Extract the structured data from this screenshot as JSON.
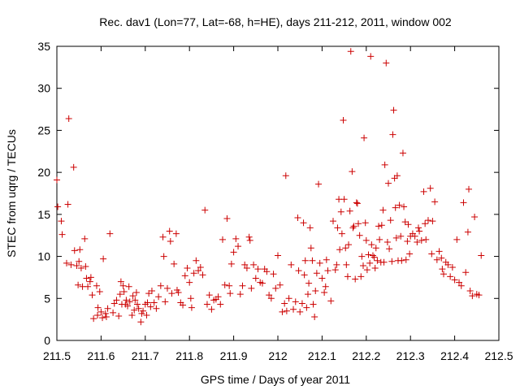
{
  "chart_data": {
    "type": "scatter",
    "title": "Rec. dav1 (Lon=77, Lat=-68, h=HE), days 211-212, 2011, window 002",
    "xlabel": "GPS time / Days of year 2011",
    "ylabel": "STEC from uqrg / TECUs",
    "xlim": [
      211.5,
      212.5
    ],
    "ylim": [
      0,
      35
    ],
    "xticks": [
      211.5,
      211.6,
      211.7,
      211.8,
      211.9,
      212.0,
      212.1,
      212.2,
      212.3,
      212.4,
      212.5
    ],
    "xtick_labels": [
      "211.5",
      "211.6",
      "211.7",
      "211.8",
      "211.9",
      "212",
      "212.1",
      "212.2",
      "212.3",
      "212.4",
      "212.5"
    ],
    "yticks": [
      0,
      5,
      10,
      15,
      20,
      25,
      30,
      35
    ],
    "ytick_labels": [
      "0",
      "5",
      "10",
      "15",
      "20",
      "25",
      "30",
      "35"
    ],
    "marker": "+",
    "series": [
      {
        "name": "STEC",
        "color": "#cc0000",
        "points": [
          [
            211.5,
            19.1
          ],
          [
            211.502,
            15.9
          ],
          [
            211.51,
            14.2
          ],
          [
            211.512,
            12.6
          ],
          [
            211.522,
            9.2
          ],
          [
            211.525,
            16.2
          ],
          [
            211.527,
            26.4
          ],
          [
            211.532,
            9.0
          ],
          [
            211.538,
            20.6
          ],
          [
            211.54,
            10.7
          ],
          [
            211.545,
            8.9
          ],
          [
            211.548,
            6.6
          ],
          [
            211.55,
            9.4
          ],
          [
            211.552,
            10.8
          ],
          [
            211.555,
            8.6
          ],
          [
            211.558,
            6.4
          ],
          [
            211.563,
            12.1
          ],
          [
            211.565,
            8.8
          ],
          [
            211.567,
            7.4
          ],
          [
            211.57,
            6.4
          ],
          [
            211.575,
            7.0
          ],
          [
            211.577,
            7.5
          ],
          [
            211.58,
            5.4
          ],
          [
            211.583,
            2.6
          ],
          [
            211.59,
            6.5
          ],
          [
            211.592,
            3.0
          ],
          [
            211.593,
            3.9
          ],
          [
            211.597,
            5.8
          ],
          [
            211.6,
            3.4
          ],
          [
            211.603,
            2.7
          ],
          [
            211.605,
            9.7
          ],
          [
            211.61,
            3.2
          ],
          [
            211.612,
            2.8
          ],
          [
            211.615,
            3.8
          ],
          [
            211.62,
            12.7
          ],
          [
            211.627,
            3.3
          ],
          [
            211.63,
            4.4
          ],
          [
            211.635,
            4.8
          ],
          [
            211.64,
            2.9
          ],
          [
            211.643,
            5.5
          ],
          [
            211.645,
            7.0
          ],
          [
            211.647,
            4.3
          ],
          [
            211.65,
            6.5
          ],
          [
            211.652,
            5.8
          ],
          [
            211.655,
            4.3
          ],
          [
            211.657,
            4.8
          ],
          [
            211.66,
            4.1
          ],
          [
            211.663,
            6.4
          ],
          [
            211.665,
            4.6
          ],
          [
            211.67,
            3.0
          ],
          [
            211.672,
            5.3
          ],
          [
            211.675,
            3.6
          ],
          [
            211.677,
            4.8
          ],
          [
            211.68,
            5.7
          ],
          [
            211.682,
            4.3
          ],
          [
            211.685,
            3.8
          ],
          [
            211.69,
            2.2
          ],
          [
            211.692,
            3.2
          ],
          [
            211.695,
            3.5
          ],
          [
            211.7,
            4.3
          ],
          [
            211.703,
            3.0
          ],
          [
            211.705,
            4.5
          ],
          [
            211.708,
            5.6
          ],
          [
            211.712,
            4.0
          ],
          [
            211.715,
            5.9
          ],
          [
            211.72,
            4.5
          ],
          [
            211.725,
            3.8
          ],
          [
            211.73,
            5.2
          ],
          [
            211.735,
            6.5
          ],
          [
            211.74,
            12.3
          ],
          [
            211.742,
            10.0
          ],
          [
            211.745,
            4.6
          ],
          [
            211.75,
            6.2
          ],
          [
            211.755,
            13.0
          ],
          [
            211.757,
            11.8
          ],
          [
            211.76,
            5.6
          ],
          [
            211.765,
            9.1
          ],
          [
            211.77,
            12.7
          ],
          [
            211.772,
            6.0
          ],
          [
            211.775,
            5.7
          ],
          [
            211.78,
            4.5
          ],
          [
            211.785,
            4.2
          ],
          [
            211.79,
            7.7
          ],
          [
            211.795,
            8.6
          ],
          [
            211.8,
            6.9
          ],
          [
            211.803,
            5.0
          ],
          [
            211.805,
            3.9
          ],
          [
            211.81,
            8.0
          ],
          [
            211.815,
            9.5
          ],
          [
            211.82,
            8.3
          ],
          [
            211.825,
            8.7
          ],
          [
            211.83,
            7.8
          ],
          [
            211.835,
            15.5
          ],
          [
            211.84,
            4.3
          ],
          [
            211.845,
            5.4
          ],
          [
            211.85,
            3.7
          ],
          [
            211.855,
            4.8
          ],
          [
            211.86,
            4.9
          ],
          [
            211.865,
            5.2
          ],
          [
            211.87,
            4.3
          ],
          [
            211.875,
            12.0
          ],
          [
            211.88,
            6.6
          ],
          [
            211.885,
            14.5
          ],
          [
            211.89,
            6.5
          ],
          [
            211.892,
            5.6
          ],
          [
            211.895,
            9.1
          ],
          [
            211.9,
            10.5
          ],
          [
            211.905,
            12.1
          ],
          [
            211.91,
            11.2
          ],
          [
            211.915,
            5.5
          ],
          [
            211.92,
            6.5
          ],
          [
            211.925,
            9.0
          ],
          [
            211.93,
            8.6
          ],
          [
            211.935,
            12.3
          ],
          [
            211.937,
            11.9
          ],
          [
            211.94,
            6.2
          ],
          [
            211.945,
            9.0
          ],
          [
            211.95,
            7.4
          ],
          [
            211.955,
            8.5
          ],
          [
            211.96,
            6.9
          ],
          [
            211.965,
            6.8
          ],
          [
            211.97,
            8.5
          ],
          [
            211.975,
            8.2
          ],
          [
            211.98,
            5.4
          ],
          [
            211.985,
            5.0
          ],
          [
            211.99,
            7.9
          ],
          [
            211.995,
            6.2
          ],
          [
            212.0,
            10.1
          ],
          [
            212.005,
            6.6
          ],
          [
            212.01,
            3.4
          ],
          [
            212.015,
            4.4
          ],
          [
            212.018,
            19.6
          ],
          [
            212.02,
            3.5
          ],
          [
            212.025,
            5.0
          ],
          [
            212.03,
            9.0
          ],
          [
            212.035,
            3.7
          ],
          [
            212.04,
            4.6
          ],
          [
            212.045,
            14.6
          ],
          [
            212.047,
            8.3
          ],
          [
            212.05,
            3.4
          ],
          [
            212.055,
            4.4
          ],
          [
            212.058,
            14.0
          ],
          [
            212.06,
            7.8
          ],
          [
            212.062,
            9.5
          ],
          [
            212.065,
            3.9
          ],
          [
            212.068,
            5.5
          ],
          [
            212.07,
            6.8
          ],
          [
            212.073,
            13.4
          ],
          [
            212.075,
            11.0
          ],
          [
            212.078,
            9.5
          ],
          [
            212.08,
            4.3
          ],
          [
            212.083,
            2.8
          ],
          [
            212.085,
            5.9
          ],
          [
            212.088,
            8.0
          ],
          [
            212.092,
            18.6
          ],
          [
            212.095,
            9.2
          ],
          [
            212.1,
            7.4
          ],
          [
            212.105,
            5.7
          ],
          [
            212.108,
            6.4
          ],
          [
            212.11,
            9.6
          ],
          [
            212.113,
            8.3
          ],
          [
            212.12,
            4.7
          ],
          [
            212.125,
            14.2
          ],
          [
            212.13,
            8.4
          ],
          [
            212.133,
            9.0
          ],
          [
            212.135,
            13.4
          ],
          [
            212.138,
            16.8
          ],
          [
            212.14,
            10.8
          ],
          [
            212.143,
            15.3
          ],
          [
            212.145,
            12.7
          ],
          [
            212.148,
            26.2
          ],
          [
            212.15,
            16.8
          ],
          [
            212.153,
            11.0
          ],
          [
            212.155,
            9.0
          ],
          [
            212.158,
            7.6
          ],
          [
            212.16,
            11.4
          ],
          [
            212.163,
            15.4
          ],
          [
            212.165,
            34.4
          ],
          [
            212.168,
            20.1
          ],
          [
            212.17,
            13.4
          ],
          [
            212.172,
            13.6
          ],
          [
            212.175,
            7.3
          ],
          [
            212.178,
            16.4
          ],
          [
            212.18,
            16.3
          ],
          [
            212.182,
            13.9
          ],
          [
            212.185,
            12.5
          ],
          [
            212.188,
            7.6
          ],
          [
            212.19,
            10.0
          ],
          [
            212.193,
            8.9
          ],
          [
            212.195,
            24.1
          ],
          [
            212.198,
            14.0
          ],
          [
            212.2,
            11.9
          ],
          [
            212.202,
            8.4
          ],
          [
            212.205,
            10.2
          ],
          [
            212.208,
            9.2
          ],
          [
            212.21,
            33.8
          ],
          [
            212.212,
            11.4
          ],
          [
            212.215,
            10.1
          ],
          [
            212.218,
            9.9
          ],
          [
            212.22,
            8.6
          ],
          [
            212.222,
            11.0
          ],
          [
            212.225,
            9.5
          ],
          [
            212.228,
            13.6
          ],
          [
            212.23,
            12.0
          ],
          [
            212.233,
            9.3
          ],
          [
            212.235,
            13.7
          ],
          [
            212.238,
            15.5
          ],
          [
            212.24,
            9.3
          ],
          [
            212.242,
            20.9
          ],
          [
            212.245,
            33.0
          ],
          [
            212.248,
            11.7
          ],
          [
            212.25,
            18.7
          ],
          [
            212.252,
            10.9
          ],
          [
            212.255,
            14.3
          ],
          [
            212.258,
            9.4
          ],
          [
            212.26,
            24.5
          ],
          [
            212.262,
            27.4
          ],
          [
            212.264,
            19.3
          ],
          [
            212.266,
            15.8
          ],
          [
            212.268,
            12.2
          ],
          [
            212.27,
            19.6
          ],
          [
            212.272,
            9.5
          ],
          [
            212.275,
            16.1
          ],
          [
            212.278,
            12.4
          ],
          [
            212.28,
            9.5
          ],
          [
            212.283,
            22.3
          ],
          [
            212.285,
            15.9
          ],
          [
            212.288,
            14.1
          ],
          [
            212.29,
            9.6
          ],
          [
            212.293,
            11.8
          ],
          [
            212.295,
            13.8
          ],
          [
            212.298,
            10.3
          ],
          [
            212.3,
            12.4
          ],
          [
            212.305,
            12.7
          ],
          [
            212.31,
            12.4
          ],
          [
            212.315,
            11.7
          ],
          [
            212.318,
            13.4
          ],
          [
            212.32,
            13.0
          ],
          [
            212.325,
            11.9
          ],
          [
            212.33,
            17.7
          ],
          [
            212.333,
            13.9
          ],
          [
            212.335,
            12.0
          ],
          [
            212.34,
            14.3
          ],
          [
            212.345,
            18.1
          ],
          [
            212.348,
            10.3
          ],
          [
            212.35,
            14.2
          ],
          [
            212.355,
            16.5
          ],
          [
            212.36,
            9.6
          ],
          [
            212.365,
            10.6
          ],
          [
            212.37,
            9.8
          ],
          [
            212.372,
            8.5
          ],
          [
            212.375,
            7.9
          ],
          [
            212.38,
            9.3
          ],
          [
            212.385,
            9.0
          ],
          [
            212.39,
            7.6
          ],
          [
            212.395,
            8.7
          ],
          [
            212.4,
            7.2
          ],
          [
            212.405,
            12.0
          ],
          [
            212.41,
            6.9
          ],
          [
            212.415,
            6.5
          ],
          [
            212.42,
            16.4
          ],
          [
            212.425,
            8.1
          ],
          [
            212.43,
            12.9
          ],
          [
            212.432,
            18.0
          ],
          [
            212.435,
            5.9
          ],
          [
            212.44,
            5.3
          ],
          [
            212.445,
            14.7
          ],
          [
            212.45,
            5.5
          ],
          [
            212.455,
            5.4
          ],
          [
            212.46,
            10.1
          ]
        ]
      }
    ]
  }
}
